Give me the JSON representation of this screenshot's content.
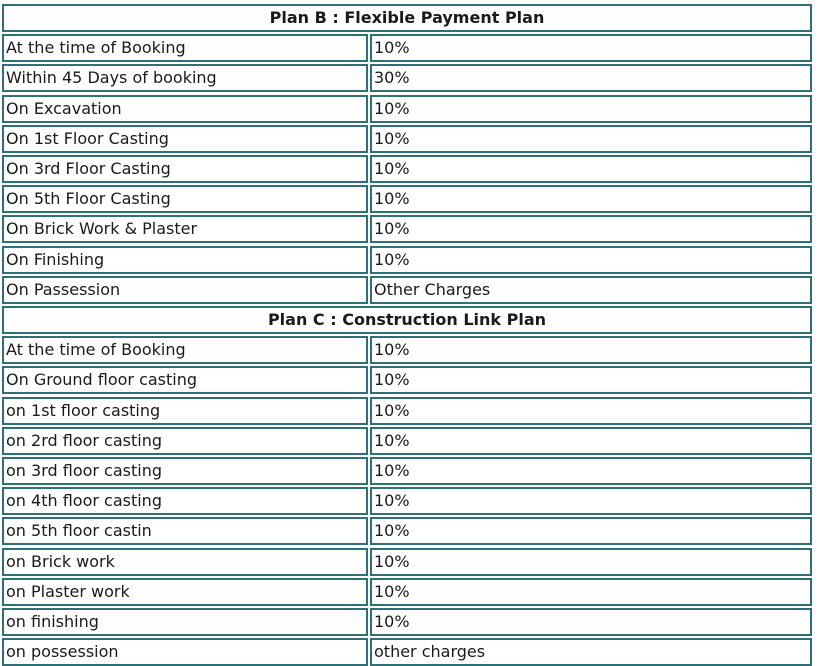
{
  "sections": [
    {
      "title": "Plan B : Flexible Payment Plan",
      "rows": [
        [
          "At the time of Booking",
          "10%"
        ],
        [
          "Within 45 Days of booking",
          "30%"
        ],
        [
          "On Excavation",
          "10%"
        ],
        [
          "On 1st Floor Casting",
          "10%"
        ],
        [
          "On 3rd Floor Casting",
          "10%"
        ],
        [
          "On 5th Floor Casting",
          "10%"
        ],
        [
          "On Brick Work & Plaster",
          "10%"
        ],
        [
          "On Finishing",
          "10%"
        ],
        [
          "On Passession",
          "Other Charges"
        ]
      ]
    },
    {
      "title": "Plan C : Construction Link Plan",
      "rows": [
        [
          "At the time of Booking",
          "10%"
        ],
        [
          "On Ground floor casting",
          "10%"
        ],
        [
          "on 1st floor casting",
          "10%"
        ],
        [
          "on 2rd floor casting",
          "10%"
        ],
        [
          "on 3rd floor casting",
          "10%"
        ],
        [
          "on 4th floor casting",
          "10%"
        ],
        [
          "on 5th floor castin",
          "10%"
        ],
        [
          "on Brick work",
          "10%"
        ],
        [
          "on Plaster work",
          "10%"
        ],
        [
          "on finishing",
          "10%"
        ],
        [
          "on possession",
          "other charges"
        ]
      ]
    }
  ]
}
